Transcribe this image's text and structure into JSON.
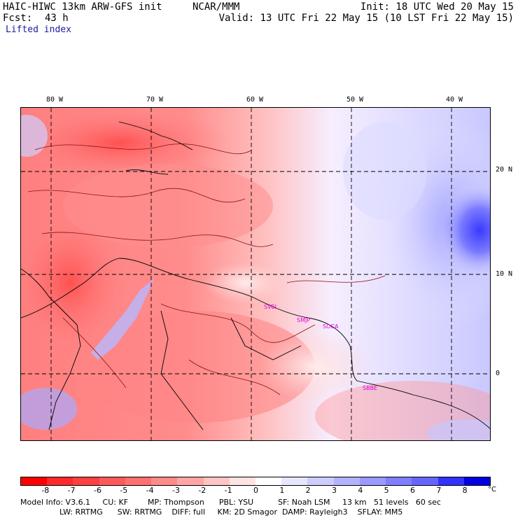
{
  "header": {
    "model": "HAIC-HIWC 13km ARW-GFS init",
    "org": "NCAR/MMM",
    "init": "Init: 18 UTC Wed 20 May 15",
    "fcst_label": "Fcst:",
    "fcst_value": "43 h",
    "valid": "Valid: 13 UTC Fri 22 May 15 (10 LST Fri 22 May 15)",
    "field": "Lifted index"
  },
  "map": {
    "lon_labels": [
      "80 W",
      "70 W",
      "60 W",
      "50 W",
      "40 W"
    ],
    "lat_labels": [
      "20 N",
      "10 N",
      "0"
    ],
    "stations": [
      "SVEL",
      "SMJP",
      "SOCA",
      "SBBE"
    ]
  },
  "colorbar": {
    "labels": [
      "-8",
      "-7",
      "-6",
      "-5",
      "-4",
      "-3",
      "-2",
      "-1",
      "0",
      "1",
      "2",
      "3",
      "4",
      "5",
      "6",
      "7",
      "8"
    ],
    "unit": "°C",
    "colors": [
      "#ff0000",
      "#ff2a2a",
      "#ff4040",
      "#ff5a5a",
      "#ff7070",
      "#ff8a8a",
      "#ffa5a5",
      "#ffc4c4",
      "#ffe2e2",
      "#ffffff",
      "#e6e6ff",
      "#ccccff",
      "#b2b2ff",
      "#9999ff",
      "#7f7fff",
      "#6666ff",
      "#3333ff",
      "#0000e0"
    ]
  },
  "footer": {
    "line1": "Model Info: V3.6.1     CU: KF        MP: Thompson      PBL: YSU          SF: Noah LSM     13 km   51 levels   60 sec",
    "line2": "                LW: RRTMG      SW: RRTMG    DIFF: full     KM: 2D Smagor  DAMP: Rayleigh3    SFLAY: MM5"
  }
}
